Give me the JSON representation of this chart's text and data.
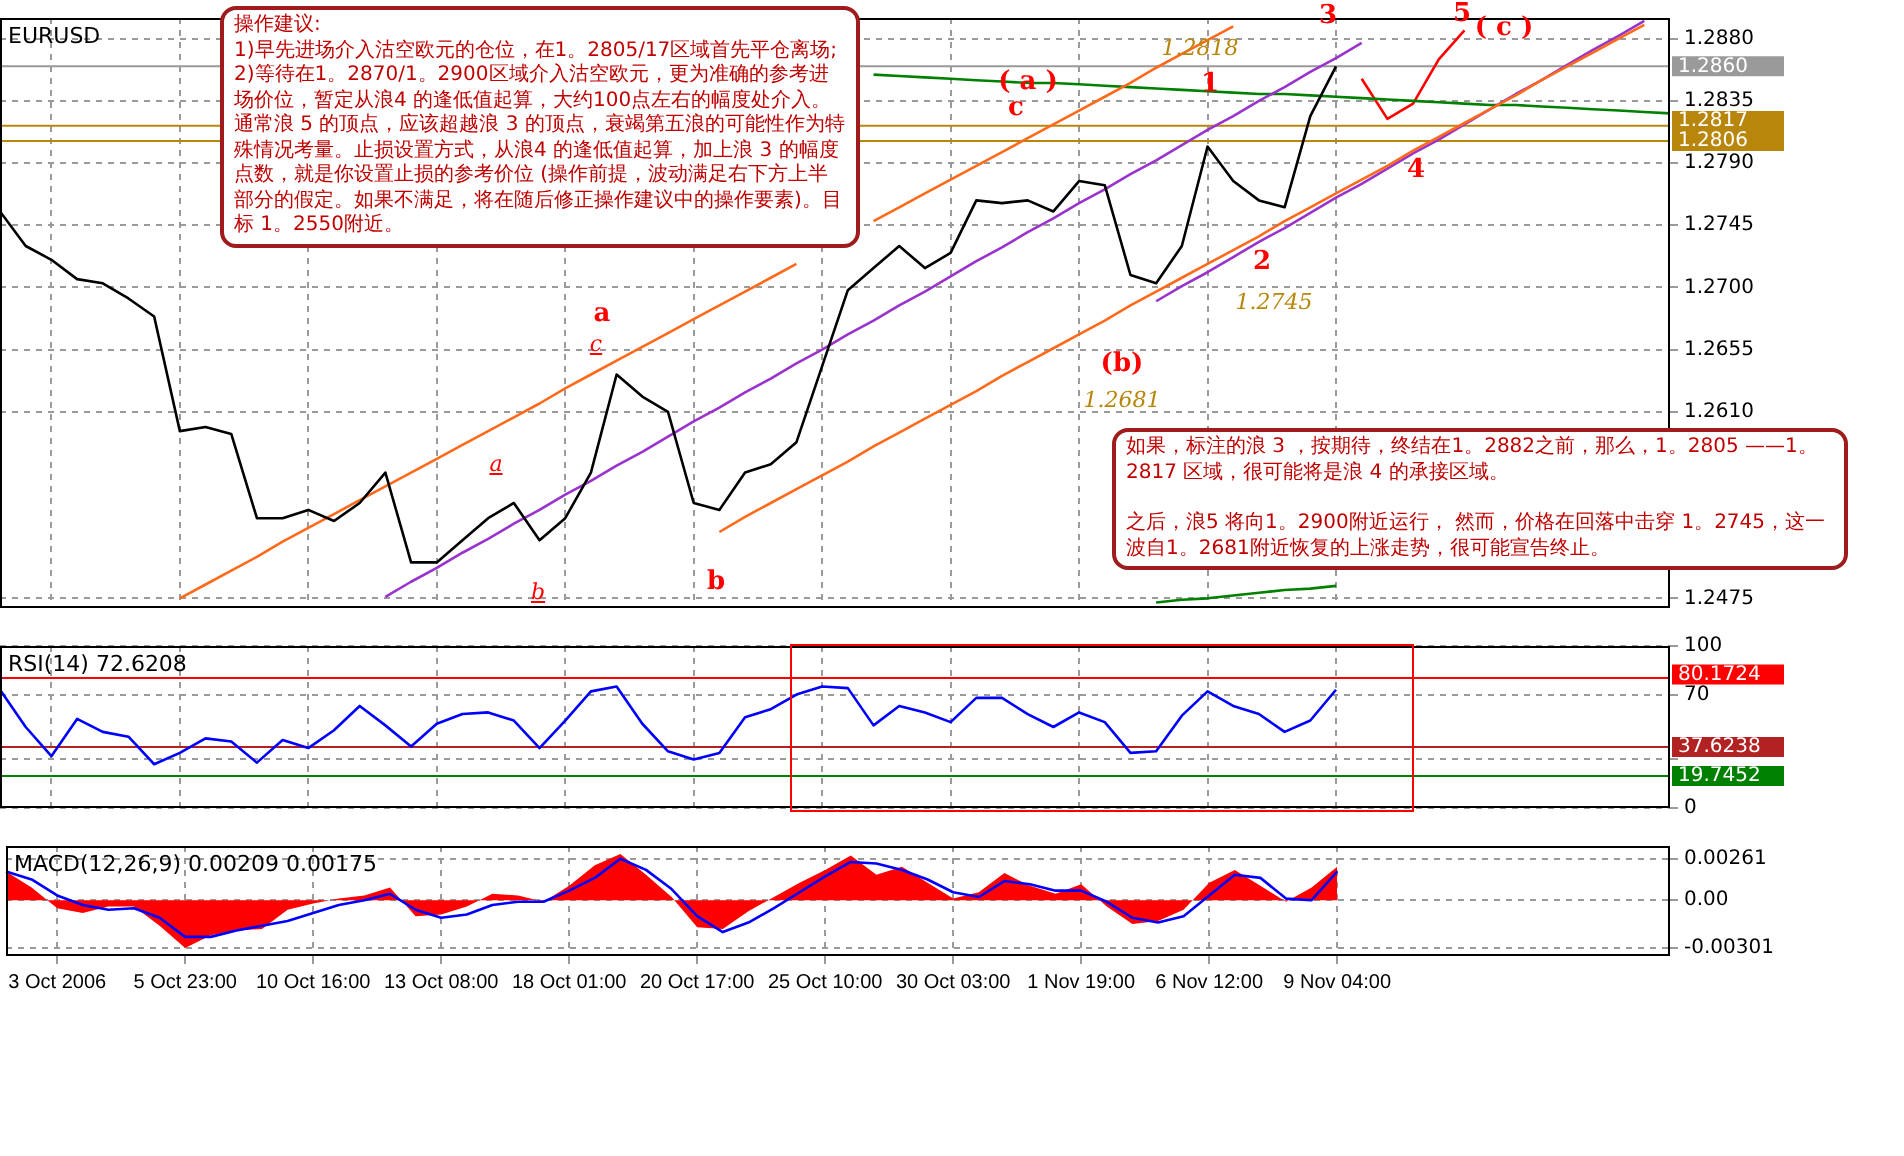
{
  "chart_data": [
    {
      "type": "line",
      "title": "EURUSD",
      "ylim": [
        1.2468,
        1.2895
      ],
      "grid": true,
      "marker": "none",
      "tick_labels": "y",
      "categories": [
        null,
        null,
        null,
        null,
        null,
        null,
        null,
        null,
        null,
        null,
        null,
        null,
        null,
        null,
        null,
        null,
        null,
        null,
        null,
        null,
        null,
        null,
        null,
        null,
        null,
        null,
        null,
        null,
        null,
        null,
        null,
        null,
        null,
        null,
        null,
        null,
        null,
        null,
        null,
        null,
        null,
        null,
        null,
        null,
        null,
        null,
        null,
        null,
        null,
        null,
        null,
        null,
        null,
        null,
        null,
        null,
        null,
        null,
        null,
        null,
        null,
        null,
        null,
        null,
        null,
        null
      ],
      "yticks": [
        {
          "value": 1.2475,
          "label": "1.2475"
        },
        {
          "value": 1.261,
          "label": "1.2610"
        },
        {
          "value": 1.2655,
          "label": "1.2655"
        },
        {
          "value": 1.27,
          "label": "1.2700"
        },
        {
          "value": 1.2745,
          "label": "1.2745"
        },
        {
          "value": 1.279,
          "label": "1.2790"
        },
        {
          "value": 1.2835,
          "label": "1.2835"
        },
        {
          "value": 1.288,
          "label": "1.2880"
        }
      ],
      "series": [
        {
          "color": "#000000",
          "values": [
            1.2755,
            1.273,
            1.272,
            1.2706,
            1.2703,
            1.2692,
            1.2679,
            1.2596,
            1.2599,
            1.2594,
            1.2533,
            1.2533,
            1.2539,
            1.2531,
            1.2544,
            1.2566,
            1.2501,
            1.2501,
            1.2517,
            1.2533,
            1.2544,
            1.2517,
            1.2533,
            1.2566,
            1.2637,
            1.2621,
            1.261,
            1.2544,
            1.2539,
            1.2566,
            1.2572,
            1.2588,
            1.2643,
            1.2698,
            1.2714,
            1.273,
            1.2714,
            1.2725,
            1.2763,
            1.2761,
            1.2763,
            1.2755,
            1.2777,
            1.2774,
            1.2709,
            1.2703,
            1.273,
            1.2802,
            1.2777,
            1.2763,
            1.2758,
            1.2824,
            1.286,
            null,
            null,
            null,
            null,
            null,
            null,
            null,
            null,
            null,
            null,
            null,
            null,
            null
          ]
        },
        {
          "color": "#ff6a1a",
          "values": [
            null,
            null,
            null,
            null,
            null,
            null,
            null,
            1.2475,
            1.2485,
            1.2495,
            1.2505,
            1.2516,
            1.2526,
            1.2536,
            1.2546,
            1.2556,
            1.2566,
            1.2576,
            1.2586,
            1.2596,
            1.2606,
            1.2616,
            1.2627,
            1.2637,
            1.2647,
            1.2657,
            1.2667,
            1.2677,
            1.2687,
            1.2697,
            1.2707,
            1.2717,
            null,
            null,
            1.2748,
            1.2758,
            1.2768,
            1.2778,
            1.2788,
            1.2798,
            1.2808,
            1.2818,
            1.2828,
            1.2838,
            1.2848,
            1.2859,
            1.2869,
            1.2879,
            1.2889,
            null,
            null,
            null,
            null,
            null,
            null,
            null,
            null,
            null,
            null,
            null,
            null,
            null,
            null,
            null,
            null,
            null
          ]
        },
        {
          "color": "#9933cc",
          "values": [
            null,
            null,
            null,
            null,
            null,
            null,
            null,
            null,
            null,
            null,
            null,
            null,
            null,
            null,
            null,
            1.2476,
            1.2487,
            1.2497,
            1.2508,
            1.2518,
            1.2529,
            1.2539,
            1.255,
            1.256,
            1.2571,
            1.2581,
            1.2592,
            1.2603,
            1.2613,
            1.2624,
            1.2634,
            1.2645,
            1.2655,
            1.2666,
            1.2676,
            1.2687,
            1.2697,
            1.2708,
            1.2719,
            1.2729,
            1.274,
            1.275,
            1.2761,
            1.2771,
            1.2782,
            1.2792,
            1.2803,
            1.2814,
            1.2824,
            1.2835,
            1.2845,
            1.2856,
            1.2866,
            1.2877,
            null,
            null,
            null,
            null,
            null,
            null,
            null,
            null,
            null,
            null,
            null,
            null
          ]
        },
        {
          "color": "#ff6a1a",
          "values": [
            null,
            null,
            null,
            null,
            null,
            null,
            null,
            null,
            null,
            null,
            null,
            null,
            null,
            null,
            null,
            null,
            null,
            null,
            null,
            null,
            null,
            null,
            null,
            null,
            null,
            null,
            null,
            null,
            1.2523,
            1.2534,
            1.2544,
            1.2554,
            1.2564,
            1.2574,
            1.2585,
            1.2595,
            1.2605,
            1.2615,
            1.2625,
            1.2636,
            1.2646,
            1.2656,
            1.2666,
            1.2676,
            1.2687,
            1.2697,
            1.2707,
            1.2717,
            1.2727,
            1.2737,
            1.2748,
            1.2758,
            1.2768,
            1.2778,
            1.2788,
            1.2799,
            1.2809,
            1.2819,
            1.2829,
            1.2839,
            1.285,
            1.286,
            1.287,
            1.288,
            1.289,
            null
          ]
        },
        {
          "color": "#9933cc",
          "values": [
            null,
            null,
            null,
            null,
            null,
            null,
            null,
            null,
            null,
            null,
            null,
            null,
            null,
            null,
            null,
            null,
            null,
            null,
            null,
            null,
            null,
            null,
            null,
            null,
            null,
            null,
            null,
            null,
            null,
            null,
            null,
            null,
            null,
            null,
            null,
            null,
            null,
            null,
            null,
            null,
            null,
            null,
            null,
            null,
            null,
            1.269,
            1.2701,
            1.2711,
            1.2722,
            1.2733,
            1.2743,
            1.2754,
            1.2765,
            1.2775,
            1.2786,
            1.2797,
            1.2807,
            1.2818,
            1.2829,
            1.284,
            1.285,
            1.2861,
            1.2872,
            1.2882,
            1.2893,
            null
          ]
        },
        {
          "color": "#008000",
          "values": [
            null,
            null,
            null,
            null,
            null,
            null,
            null,
            null,
            null,
            null,
            null,
            null,
            null,
            null,
            null,
            null,
            null,
            null,
            null,
            null,
            null,
            null,
            null,
            null,
            null,
            null,
            null,
            null,
            null,
            null,
            null,
            null,
            null,
            null,
            1.2854,
            1.2853,
            1.2852,
            1.2851,
            1.285,
            1.2849,
            1.2848,
            1.2848,
            1.2847,
            1.2846,
            1.2845,
            1.2844,
            1.2843,
            1.2842,
            1.2841,
            1.284,
            1.284,
            1.2839,
            1.2838,
            1.2837,
            1.2836,
            1.2835,
            1.2834,
            1.2833,
            1.2832,
            1.2832,
            1.2831,
            1.283,
            1.2829,
            1.2828,
            1.2827,
            1.2826
          ]
        },
        {
          "color": "#008000",
          "values": [
            null,
            null,
            null,
            null,
            null,
            null,
            null,
            null,
            null,
            null,
            null,
            null,
            null,
            null,
            null,
            null,
            null,
            null,
            null,
            null,
            null,
            null,
            null,
            null,
            null,
            null,
            null,
            null,
            null,
            null,
            null,
            null,
            null,
            null,
            null,
            null,
            null,
            null,
            null,
            null,
            null,
            null,
            null,
            null,
            null,
            1.2472,
            1.2474,
            1.2475,
            1.2477,
            1.2479,
            1.2481,
            1.2482,
            1.2484,
            null,
            null,
            null,
            null,
            null,
            null,
            null,
            null,
            null,
            null,
            null,
            null,
            null
          ]
        },
        {
          "color": "#ff0000",
          "values": [
            null,
            null,
            null,
            null,
            null,
            null,
            null,
            null,
            null,
            null,
            null,
            null,
            null,
            null,
            null,
            null,
            null,
            null,
            null,
            null,
            null,
            null,
            null,
            null,
            null,
            null,
            null,
            null,
            null,
            null,
            null,
            null,
            null,
            null,
            null,
            null,
            null,
            null,
            null,
            null,
            null,
            null,
            null,
            null,
            null,
            null,
            null,
            null,
            null,
            null,
            null,
            null,
            null,
            1.2851,
            1.2822,
            1.2833,
            1.2865,
            1.2886,
            null,
            null,
            null,
            null,
            null,
            null,
            null,
            null
          ]
        }
      ],
      "ref_lines": [
        {
          "axis": "y",
          "value": 1.286,
          "label": "1.2860",
          "color": "#9a9a9a"
        },
        {
          "axis": "y",
          "value": 1.2817,
          "label": "1.2817",
          "color": "#b8860b"
        },
        {
          "axis": "y",
          "value": 1.2806,
          "label": "1.2806",
          "color": "#b8860b"
        }
      ],
      "annotations": [
        "操作建议:",
        "1)早先进场介入沽空欧元的仓位，在1。2805/17区域首先平仓离场;",
        "2)等待在1。2870/1。2900区域介入沽空欧元，更为准确的参考进场价位，暂定从浪4 的逢低值起算，大约100点左右的幅度处介入。通常浪 5 的顶点，应该超越浪 3 的顶点，衰竭第五浪的可能性作为特殊情况考量。止损设置方式，从浪4 的逢低值起算，加上浪 3 的幅度点数，就是你设置止损的参考价位 (操作前提，波动满足右下方上半部分的假定。如果不满足，将在随后修正操作建议中的操作要素)。目标 1。2550附近。",
        "如果，标注的浪 3 ，按期待，终结在1。2882之前，那么，1。2805 ——1。2817 区域，很可能将是浪 4 的承接区域。",
        "之后，浪5 将向1。2900附近运行，  然而，价格在回落中击穿 1。2745，这一波自1。2681附近恢复的上涨走势，很可能宣告终止。",
        "a",
        "b",
        "c",
        "a",
        "b",
        "c",
        "( a )",
        "(b)",
        "1.2681",
        "1",
        "1.2818",
        "2",
        "1.2745",
        "3",
        "4",
        "5",
        "( c )"
      ]
    },
    {
      "type": "line",
      "title": "RSI(14) 72.6208",
      "ylim": [
        0,
        100
      ],
      "grid": true,
      "marker": "none",
      "tick_labels": "y",
      "categories": [
        null,
        null,
        null,
        null,
        null,
        null,
        null,
        null,
        null,
        null,
        null,
        null,
        null,
        null,
        null,
        null,
        null,
        null,
        null,
        null,
        null,
        null,
        null,
        null,
        null,
        null,
        null,
        null,
        null,
        null,
        null,
        null,
        null,
        null,
        null,
        null,
        null,
        null,
        null,
        null,
        null,
        null,
        null,
        null,
        null,
        null,
        null,
        null,
        null,
        null,
        null,
        null,
        null,
        null,
        null,
        null,
        null,
        null,
        null,
        null,
        null,
        null,
        null,
        null,
        null,
        null
      ],
      "yticks": [
        0,
        {
          "value": 30,
          "label": null
        },
        70,
        100
      ],
      "series": [
        {
          "color": "#0000ff",
          "values": [
            73,
            50,
            32,
            55,
            47,
            44,
            27,
            34,
            43,
            41,
            28,
            42,
            37,
            48,
            63,
            51,
            38,
            52,
            58,
            59,
            54,
            37,
            54,
            72,
            75,
            52,
            35,
            30,
            34,
            56,
            61,
            70,
            75,
            74,
            51,
            63,
            59,
            53,
            68,
            68,
            58,
            50,
            59,
            53,
            34,
            35,
            57,
            72,
            63,
            58,
            47,
            54,
            73,
            null,
            null,
            null,
            null,
            null,
            null,
            null,
            null,
            null,
            null,
            null,
            null,
            null
          ]
        }
      ],
      "ref_lines": [
        {
          "axis": "y",
          "value": 80.1724,
          "label": "80.1724",
          "color": "#ff0000"
        },
        {
          "axis": "y",
          "value": 37.6238,
          "label": "37.6238",
          "color": "#b22222"
        },
        {
          "axis": "y",
          "value": 19.7452,
          "label": "19.7452",
          "color": "#008000"
        }
      ]
    },
    {
      "type": "line",
      "title": "MACD(12,26,9) 0.00209 0.00175",
      "ylim": [
        -0.0035,
        0.0034
      ],
      "grid": true,
      "marker": "none",
      "categories": [
        null,
        null,
        "3 Oct 2006",
        null,
        null,
        null,
        null,
        "5 Oct 23:00",
        null,
        null,
        null,
        null,
        "10 Oct 16:00",
        null,
        null,
        null,
        null,
        "13 Oct 08:00",
        null,
        null,
        null,
        null,
        "18 Oct 01:00",
        null,
        null,
        null,
        null,
        "20 Oct 17:00",
        null,
        null,
        null,
        null,
        "25 Oct 10:00",
        null,
        null,
        null,
        null,
        "30 Oct 03:00",
        null,
        null,
        null,
        null,
        "1 Nov 19:00",
        null,
        null,
        null,
        null,
        "6 Nov 12:00",
        null,
        null,
        null,
        null,
        "9 Nov 04:00",
        null,
        null,
        null,
        null,
        null,
        null,
        null,
        null,
        null,
        null,
        null,
        null,
        null
      ],
      "yticks": [
        -0.00301,
        {
          "value": 0,
          "label": "0.00"
        },
        0.00261
      ],
      "series": [
        {
          "type": "area",
          "color": "#ff0000",
          "values": [
            0.0018,
            0.0008,
            -0.0005,
            -0.0008,
            -0.0004,
            -0.0004,
            -0.0016,
            -0.003,
            -0.0022,
            -0.0019,
            -0.0018,
            -0.0006,
            -0.0002,
            0.0001,
            0.0003,
            0.0008,
            -0.001,
            -0.0009,
            -0.0004,
            0.0004,
            0.0003,
            -0.0001,
            0.0009,
            0.0022,
            0.0029,
            0.0016,
            0.0002,
            -0.0017,
            -0.0018,
            -0.0007,
            0.0002,
            0.0011,
            0.0019,
            0.0028,
            0.0016,
            0.0021,
            0.0011,
            0.0001,
            0.0005,
            0.0017,
            0.0009,
            0.0004,
            0.001,
            -0.0004,
            -0.0015,
            -0.0013,
            -0.0006,
            0.0011,
            0.0019,
            0.0009,
            -0.0001,
            0.0008,
            0.0021,
            null,
            null,
            null,
            null,
            null,
            null,
            null,
            null,
            null,
            null,
            null,
            null,
            null
          ]
        },
        {
          "color": "#0000ff",
          "values": [
            0.0018,
            0.0013,
            0.0003,
            -0.0003,
            -0.0006,
            -0.0005,
            -0.0011,
            -0.0023,
            -0.0023,
            -0.0019,
            -0.0016,
            -0.0013,
            -0.0008,
            -0.0003,
            0,
            0.0004,
            -0.0006,
            -0.0011,
            -0.0009,
            -0.0003,
            -0.0001,
            -0.0001,
            0.0006,
            0.0014,
            0.0026,
            0.0019,
            0.0007,
            -0.001,
            -0.002,
            -0.0014,
            -0.0005,
            0.0005,
            0.0015,
            0.0024,
            0.0023,
            0.0019,
            0.0013,
            0.0005,
            0.0002,
            0.0012,
            0.001,
            0.0006,
            0.0006,
            -0.0001,
            -0.0011,
            -0.0014,
            -0.001,
            0.0003,
            0.0016,
            0.0014,
            0.0001,
            0,
            0.0018,
            null,
            null,
            null,
            null,
            null,
            null,
            null,
            null,
            null,
            null,
            null,
            null,
            null
          ]
        }
      ]
    }
  ]
}
